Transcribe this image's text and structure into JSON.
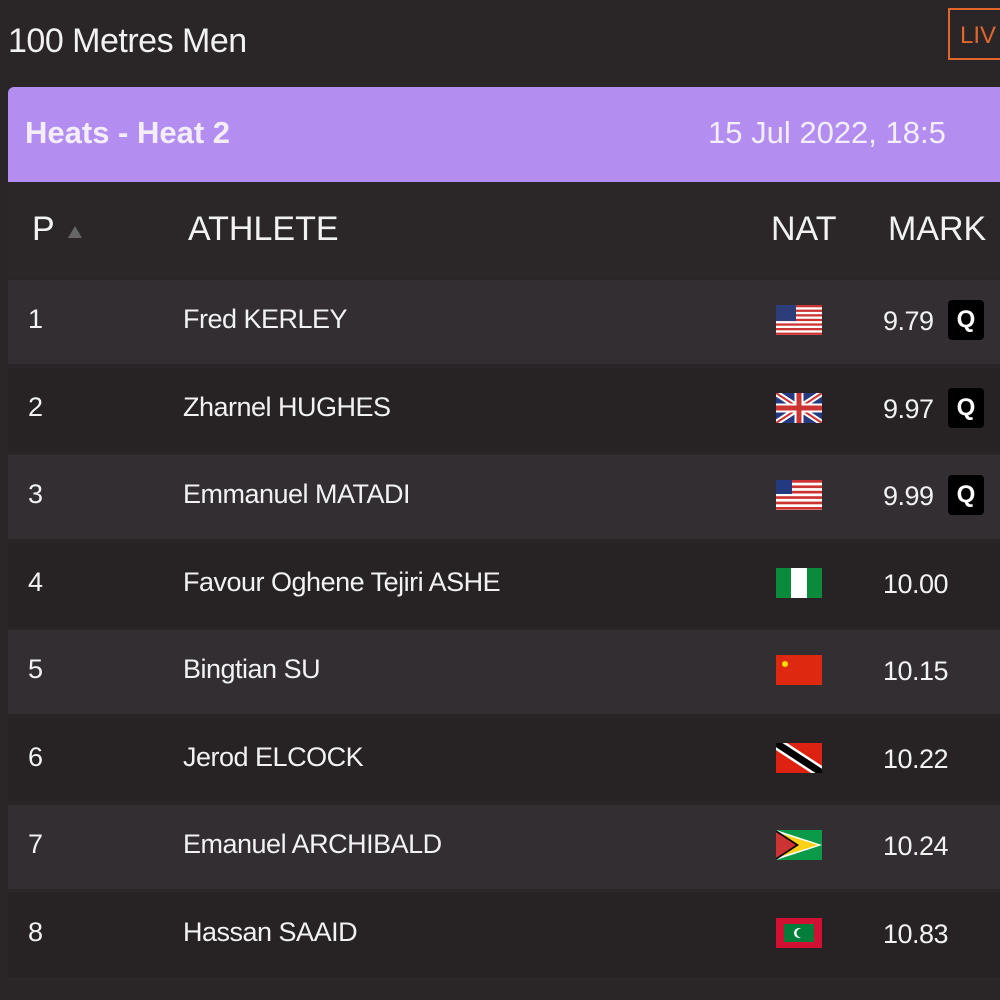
{
  "header": {
    "title": "100 Metres Men",
    "live": "LIV"
  },
  "event": {
    "round": "Heats - Heat 2",
    "datetime": "15 Jul 2022, 18:5"
  },
  "table": {
    "columns": [
      "P",
      "ATHLETE",
      "NAT",
      "MARK"
    ],
    "rows": [
      {
        "position": 1,
        "athlete": "Fred KERLEY",
        "mark": "9.79",
        "qualifier": "Q"
      },
      {
        "position": 2,
        "athlete": "Zharnel HUGHES",
        "mark": "9.97",
        "qualifier": "Q"
      },
      {
        "position": 3,
        "athlete": "Emmanuel MATADI",
        "mark": "9.99",
        "qualifier": "Q"
      },
      {
        "position": 4,
        "athlete": "Favour Oghene Tejiri ASHE",
        "mark": "10.00"
      },
      {
        "position": 5,
        "athlete": "Bingtian SU",
        "mark": "10.15"
      },
      {
        "position": 6,
        "athlete": "Jerod ELCOCK",
        "mark": "10.22"
      },
      {
        "position": 7,
        "athlete": "Emanuel ARCHIBALD",
        "mark": "10.24"
      },
      {
        "position": 8,
        "athlete": "Hassan SAAID",
        "mark": "10.83"
      }
    ]
  }
}
